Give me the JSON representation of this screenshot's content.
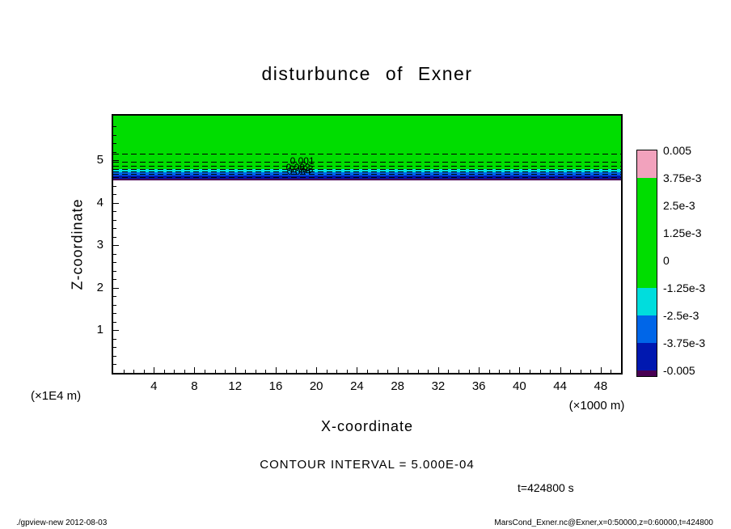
{
  "title": "disturbunce of Exner",
  "axes": {
    "x": {
      "label": "X-coordinate",
      "unit_label": "(×1000 m)",
      "major_ticks": [
        4,
        8,
        12,
        16,
        20,
        24,
        28,
        32,
        36,
        40,
        44,
        48
      ]
    },
    "y": {
      "label": "Z-coordinate",
      "unit_label": "(×1E4 m)",
      "major_ticks": [
        5,
        4,
        3,
        2,
        1
      ]
    }
  },
  "colorbar": {
    "tick_labels": [
      "0.005",
      "3.75e-3",
      "2.5e-3",
      "1.25e-3",
      "0",
      "-1.25e-3",
      "-2.5e-3",
      "-3.75e-3",
      "-0.005"
    ],
    "band_colors": [
      "#f2a2bd",
      "#00dd00",
      "#00dd00",
      "#00dd00",
      "#00dd00",
      "#00dddd",
      "#0066e8",
      "#0018b0"
    ],
    "cap_color": "#480053"
  },
  "notes": {
    "contour_interval": "CONTOUR INTERVAL = 5.000E-04",
    "time": "t=424800 s"
  },
  "footer": {
    "left": "./gpview-new  2012-08-03",
    "right": "MarsCond_Exner.nc@Exner,x=0:50000,z=0:60000,t=424800"
  },
  "chart_data": {
    "type": "heatmap",
    "title": "disturbunce of Exner",
    "xlabel": "X-coordinate (×1000 m)",
    "ylabel": "Z-coordinate (×1E4 m)",
    "xlim": [
      0,
      50
    ],
    "ylim": [
      0,
      6.05
    ],
    "contour_interval": 0.0005,
    "levels": [
      0.005,
      0.00375,
      0.0025,
      0.00125,
      0,
      -0.00125,
      -0.0025,
      -0.00375,
      -0.005
    ],
    "legend_position": "right-colorbar",
    "grid": false,
    "fill_bands": [
      {
        "z_from": 4.8,
        "z_to": 6.05,
        "color": "#00dd00",
        "value": "≈0 (|Exner'| < 1.25e-3)"
      },
      {
        "z_from": 4.72,
        "z_to": 4.8,
        "color": "#00dddd",
        "value": "-1.25e-3 to -2.5e-3"
      },
      {
        "z_from": 4.64,
        "z_to": 4.72,
        "color": "#0066e8",
        "value": "-2.5e-3 to -3.75e-3"
      },
      {
        "z_from": 4.57,
        "z_to": 4.64,
        "color": "#0018b0",
        "value": "-3.75e-3 to -5e-3"
      },
      {
        "z_from": 4.52,
        "z_to": 4.57,
        "color": "#480053",
        "value": "< -5e-3"
      },
      {
        "z_from": 0,
        "z_to": 4.52,
        "color": "#ffffff",
        "value": "0 / blank below z≈4.5e4 m"
      }
    ],
    "contour_lines_z": [
      5.16,
      4.97,
      4.87,
      4.79,
      4.74,
      4.68,
      4.61
    ],
    "contour_labels": [
      {
        "text": "0.001",
        "x": 18.6,
        "z": 4.99
      },
      {
        "text": "0.002",
        "x": 18.2,
        "z": 4.84
      },
      {
        "text": "0.003",
        "x": 18.5,
        "z": 4.79
      },
      {
        "text": "0.004",
        "x": 18.3,
        "z": 4.74
      }
    ]
  }
}
